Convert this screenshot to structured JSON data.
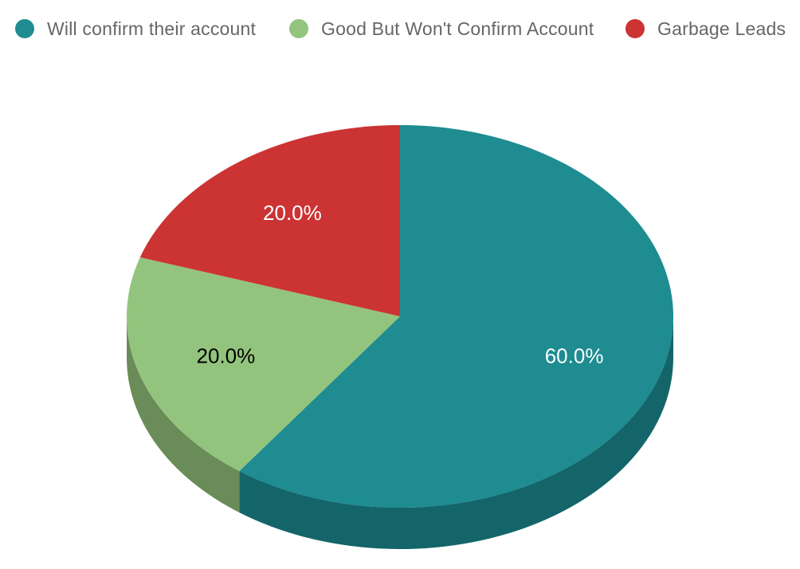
{
  "chart_data": {
    "type": "pie",
    "style": "3d",
    "legend_position": "top",
    "categories": [
      "Will confirm their account",
      "Good But Won't Confirm Account",
      "Garbage Leads"
    ],
    "values": [
      60.0,
      20.0,
      20.0
    ],
    "data_labels": [
      "60.0%",
      "20.0%",
      "20.0%"
    ],
    "colors": [
      "#1e8c91",
      "#93c47d",
      "#cc3333"
    ],
    "side_colors": [
      "#136569",
      "#6a8c58",
      "#9a2626"
    ],
    "label_colors": [
      "#ffffff",
      "#000000",
      "#ffffff"
    ]
  }
}
